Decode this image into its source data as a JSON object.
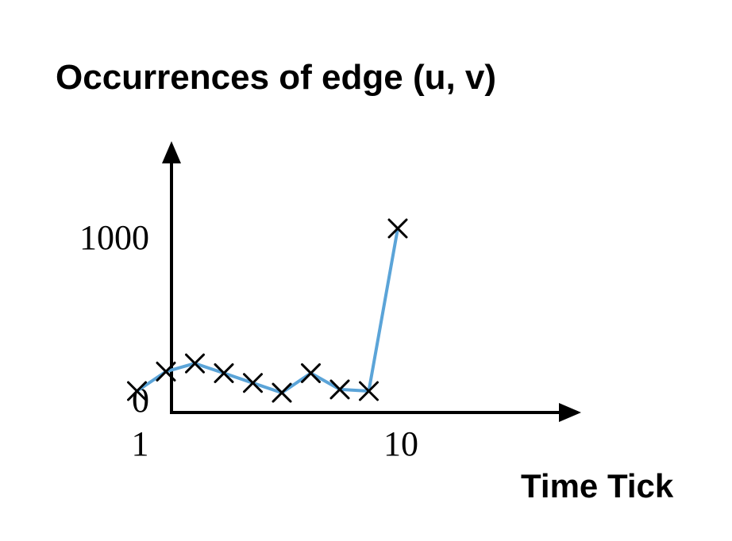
{
  "chart_data": {
    "type": "line",
    "title": "Occurrences of edge (u, v)",
    "xlabel": "Time Tick",
    "ylabel": "",
    "x_ticks": [
      {
        "value": 1,
        "label": "1"
      },
      {
        "value": 10,
        "label": "10"
      }
    ],
    "y_ticks": [
      {
        "value": 0,
        "label": "0"
      },
      {
        "value": 1000,
        "label": "1000"
      }
    ],
    "xlim": [
      0,
      14
    ],
    "ylim": [
      -30,
      1340
    ],
    "series": [
      {
        "color": "#5ba4d8",
        "marker": "x",
        "x": [
          1,
          2,
          3,
          4,
          5,
          6,
          7,
          8,
          9,
          10
        ],
        "values": [
          0,
          120,
          170,
          110,
          50,
          -10,
          110,
          10,
          0,
          1000
        ]
      }
    ],
    "grid": false,
    "legend": "none"
  }
}
